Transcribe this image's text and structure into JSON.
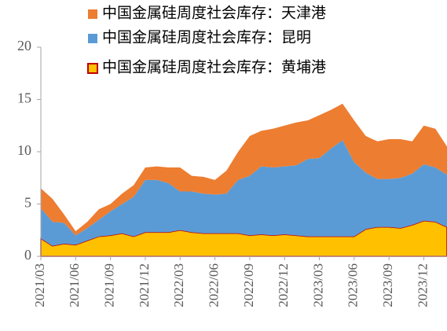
{
  "chart_data": {
    "type": "stacked-area",
    "categories": [
      "2021/03",
      null,
      null,
      "2021/06",
      null,
      null,
      "2021/09",
      null,
      null,
      "2021/12",
      null,
      null,
      "2022/03",
      null,
      null,
      "2022/06",
      null,
      null,
      "2022/09",
      null,
      null,
      "2022/12",
      null,
      null,
      "2023/03",
      null,
      null,
      "2023/06",
      null,
      null,
      "2023/09",
      null,
      null,
      "2023/12",
      null,
      null
    ],
    "series": [
      {
        "name": "中国金属硅周度社会库存：天津港",
        "color": "#ED7D31",
        "values": [
          1.9,
          2.2,
          0.8,
          0.4,
          0.6,
          1.0,
          0.7,
          1.0,
          1.1,
          1.2,
          1.3,
          1.5,
          2.3,
          1.5,
          1.6,
          1.4,
          2.2,
          2.7,
          3.8,
          3.4,
          3.7,
          3.9,
          4.1,
          3.7,
          4.1,
          3.7,
          3.5,
          4.0,
          3.5,
          3.6,
          3.8,
          3.7,
          3.1,
          3.7,
          3.7,
          2.7
        ]
      },
      {
        "name": "中国金属硅周度社会库存：昆明",
        "color": "#5B9BD5",
        "values": [
          2.9,
          2.3,
          2.0,
          0.9,
          1.2,
          1.6,
          2.3,
          2.8,
          3.8,
          5.0,
          5.0,
          4.7,
          3.7,
          3.9,
          3.8,
          3.7,
          3.8,
          5.1,
          5.7,
          6.5,
          6.5,
          6.5,
          6.7,
          7.4,
          7.5,
          8.4,
          9.2,
          7.1,
          5.4,
          4.6,
          4.6,
          4.8,
          4.9,
          5.4,
          5.2,
          5.0
        ]
      },
      {
        "name": "中国金属硅周度社会库存：黄埔港",
        "color": "#FFC000",
        "edge_color": "#C00000",
        "values": [
          1.7,
          1.0,
          1.2,
          1.1,
          1.5,
          1.9,
          2.0,
          2.2,
          1.9,
          2.3,
          2.3,
          2.3,
          2.5,
          2.3,
          2.2,
          2.2,
          2.2,
          2.2,
          2.0,
          2.1,
          2.0,
          2.1,
          2.0,
          1.9,
          1.9,
          1.9,
          1.9,
          1.9,
          2.6,
          2.8,
          2.8,
          2.7,
          3.0,
          3.4,
          3.3,
          2.8
        ]
      }
    ],
    "ylim": [
      0,
      20
    ],
    "yticks": [
      0,
      5,
      10,
      15,
      20
    ],
    "grid": false
  }
}
